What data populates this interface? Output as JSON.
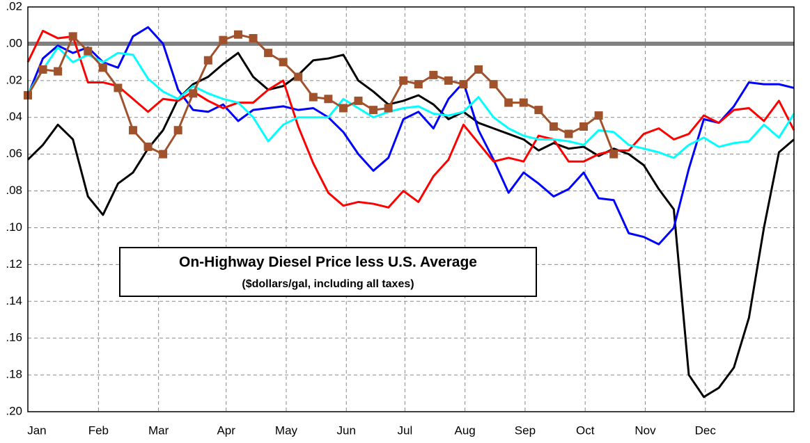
{
  "chart_data": {
    "type": "line",
    "title": "On-Highway Diesel Price  less U.S. Average",
    "subtitle": "($dollars/gal, including all taxes)",
    "xlim": [
      0,
      51
    ],
    "xticks": [
      {
        "value": 0.6,
        "label": "Jan"
      },
      {
        "value": 4.7,
        "label": "Feb"
      },
      {
        "value": 8.7,
        "label": "Mar"
      },
      {
        "value": 13.2,
        "label": "Apr"
      },
      {
        "value": 17.2,
        "label": "May"
      },
      {
        "value": 21.2,
        "label": "Jun"
      },
      {
        "value": 25.1,
        "label": "Jul"
      },
      {
        "value": 29.1,
        "label": "Aug"
      },
      {
        "value": 33.1,
        "label": "Sep"
      },
      {
        "value": 37.1,
        "label": "Oct"
      },
      {
        "value": 41.1,
        "label": "Nov"
      },
      {
        "value": 45.1,
        "label": "Dec"
      }
    ],
    "ylim": [
      -0.2,
      0.02
    ],
    "yticks": [
      {
        "value": 0.02,
        "label": ".02"
      },
      {
        "value": 0,
        "label": ".00"
      },
      {
        "value": -0.02,
        "label": ".02"
      },
      {
        "value": -0.04,
        "label": ".04"
      },
      {
        "value": -0.06,
        "label": ".06"
      },
      {
        "value": -0.08,
        "label": ".08"
      },
      {
        "value": -0.1,
        "label": ".10"
      },
      {
        "value": -0.12,
        "label": ".12"
      },
      {
        "value": -0.14,
        "label": ".14"
      },
      {
        "value": -0.16,
        "label": ".16"
      },
      {
        "value": -0.18,
        "label": ".18"
      },
      {
        "value": -0.2,
        "label": ".20"
      }
    ],
    "grid": true,
    "reference_line": {
      "value": 0,
      "color": "#808080"
    },
    "series": [
      {
        "color": "#000000",
        "marker": "none",
        "values": [
          -0.063,
          -0.055,
          -0.044,
          -0.052,
          -0.083,
          -0.093,
          -0.076,
          -0.07,
          -0.057,
          -0.047,
          -0.03,
          -0.022,
          -0.018,
          -0.011,
          -0.005,
          -0.018,
          -0.025,
          -0.023,
          -0.017,
          -0.009,
          -0.008,
          -0.006,
          -0.02,
          -0.026,
          -0.033,
          -0.031,
          -0.028,
          -0.033,
          -0.041,
          -0.037,
          -0.043,
          -0.046,
          -0.049,
          -0.052,
          -0.058,
          -0.054,
          -0.057,
          -0.056,
          -0.061,
          -0.057,
          -0.06,
          -0.066,
          -0.079,
          -0.09,
          -0.18,
          -0.192,
          -0.187,
          -0.176,
          -0.149,
          -0.1,
          -0.059,
          -0.052
        ]
      },
      {
        "color": "#0000ff",
        "marker": "none",
        "values": [
          -0.028,
          -0.008,
          -0.001,
          -0.005,
          -0.002,
          -0.01,
          -0.013,
          0.004,
          0.009,
          0,
          -0.025,
          -0.036,
          -0.037,
          -0.033,
          -0.042,
          -0.036,
          -0.035,
          -0.034,
          -0.036,
          -0.035,
          -0.04,
          -0.048,
          -0.06,
          -0.069,
          -0.062,
          -0.041,
          -0.037,
          -0.046,
          -0.03,
          -0.021,
          -0.047,
          -0.063,
          -0.081,
          -0.07,
          -0.076,
          -0.083,
          -0.079,
          -0.07,
          -0.084,
          -0.085,
          -0.103,
          -0.105,
          -0.109,
          -0.1,
          -0.068,
          -0.041,
          -0.043,
          -0.034,
          -0.021,
          -0.022,
          -0.022,
          -0.024
        ]
      },
      {
        "color": "#ff0000",
        "marker": "none",
        "values": [
          -0.01,
          0.007,
          0.003,
          0.004,
          -0.021,
          -0.021,
          -0.023,
          -0.03,
          -0.037,
          -0.03,
          -0.031,
          -0.026,
          -0.031,
          -0.035,
          -0.032,
          -0.032,
          -0.025,
          -0.02,
          -0.045,
          -0.065,
          -0.081,
          -0.088,
          -0.086,
          -0.087,
          -0.089,
          -0.08,
          -0.086,
          -0.072,
          -0.063,
          -0.044,
          -0.054,
          -0.064,
          -0.062,
          -0.064,
          -0.05,
          -0.052,
          -0.064,
          -0.064,
          -0.06,
          -0.058,
          -0.058,
          -0.049,
          -0.046,
          -0.052,
          -0.049,
          -0.039,
          -0.043,
          -0.036,
          -0.035,
          -0.042,
          -0.031,
          -0.047
        ]
      },
      {
        "color": "#00ffff",
        "marker": "none",
        "values": [
          -0.027,
          -0.014,
          -0.002,
          -0.01,
          -0.006,
          -0.01,
          -0.005,
          -0.006,
          -0.019,
          -0.026,
          -0.03,
          -0.023,
          -0.027,
          -0.03,
          -0.032,
          -0.04,
          -0.053,
          -0.044,
          -0.04,
          -0.04,
          -0.04,
          -0.03,
          -0.035,
          -0.04,
          -0.037,
          -0.035,
          -0.034,
          -0.038,
          -0.039,
          -0.037,
          -0.029,
          -0.04,
          -0.046,
          -0.05,
          -0.052,
          -0.052,
          -0.053,
          -0.055,
          -0.047,
          -0.048,
          -0.055,
          -0.057,
          -0.059,
          -0.062,
          -0.055,
          -0.051,
          -0.056,
          -0.054,
          -0.053,
          -0.044,
          -0.051,
          -0.038
        ]
      },
      {
        "color": "#a0522d",
        "marker": "square",
        "values": [
          -0.028,
          -0.014,
          -0.015,
          0.004,
          -0.004,
          -0.013,
          -0.024,
          -0.047,
          -0.056,
          -0.06,
          -0.047,
          -0.027,
          -0.009,
          0.002,
          0.005,
          0.003,
          -0.005,
          -0.01,
          -0.018,
          -0.029,
          -0.03,
          -0.035,
          -0.031,
          -0.036,
          -0.035,
          -0.02,
          -0.022,
          -0.017,
          -0.02,
          -0.022,
          -0.014,
          -0.022,
          -0.032,
          -0.032,
          -0.036,
          -0.045,
          -0.049,
          -0.045,
          -0.039,
          -0.06,
          null,
          null,
          null,
          null,
          null,
          null,
          null,
          null,
          null,
          null,
          null,
          null
        ]
      }
    ]
  }
}
